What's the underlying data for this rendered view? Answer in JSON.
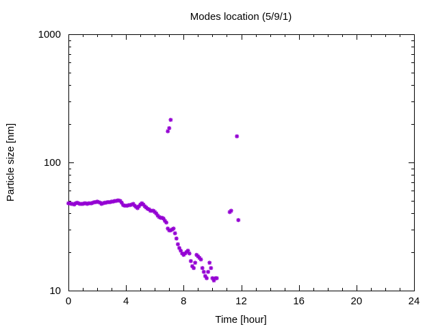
{
  "chart_data": {
    "type": "scatter",
    "title": "Modes location (5/9/1)",
    "xlabel": "Time [hour]",
    "ylabel": "Particle size [nm]",
    "xlim": [
      0,
      24
    ],
    "ylim": [
      10,
      1000
    ],
    "yscale": "log",
    "grid": false,
    "xticks": [
      0,
      4,
      8,
      12,
      16,
      20,
      24
    ],
    "xtick_labels": [
      "0",
      "4",
      "8",
      "12",
      "16",
      "20",
      "24"
    ],
    "yticks": [
      10,
      100,
      1000
    ],
    "ytick_labels": [
      "10",
      "100",
      "1000"
    ],
    "marker_color": "#9400d3",
    "series": [
      {
        "x": [
          0.0,
          0.1,
          0.2,
          0.3,
          0.4,
          0.5,
          0.6,
          0.7,
          0.8,
          0.9,
          1.0,
          1.1,
          1.2,
          1.3,
          1.4,
          1.5,
          1.6,
          1.7,
          1.8,
          1.9,
          2.0,
          2.1,
          2.2,
          2.3,
          2.4,
          2.5,
          2.6,
          2.7,
          2.8,
          2.9,
          3.0,
          3.1,
          3.2,
          3.3,
          3.4,
          3.5,
          3.6,
          3.7,
          3.8,
          3.9,
          4.0,
          4.1,
          4.2,
          4.3,
          4.4,
          4.5,
          4.6,
          4.7,
          4.8,
          4.9,
          5.0,
          5.1,
          5.2,
          5.3,
          5.4,
          5.5,
          5.6,
          5.7,
          5.8,
          5.9,
          6.0,
          6.1,
          6.2,
          6.3,
          6.4,
          6.5,
          6.6,
          6.7,
          6.8,
          6.9,
          7.0,
          7.1,
          7.2,
          7.3,
          7.4,
          7.5,
          7.6,
          7.7,
          7.8,
          7.9,
          8.0,
          8.1,
          8.2,
          8.3,
          8.4,
          8.5,
          8.6,
          8.7,
          8.8,
          8.9,
          9.0,
          9.1,
          9.2,
          9.3,
          9.4,
          9.5,
          9.6,
          9.7,
          9.8,
          9.9,
          10.0,
          10.1,
          10.2,
          10.3,
          11.2,
          11.3,
          6.9,
          7.0,
          7.1,
          11.7,
          11.8
        ],
        "y": [
          48,
          48,
          47.5,
          47.5,
          47,
          48,
          48.5,
          48,
          47.5,
          47.5,
          47.5,
          48,
          48,
          47.5,
          48,
          48,
          48,
          48.5,
          49,
          49,
          49.5,
          49,
          48.5,
          47.5,
          48,
          48.5,
          48.5,
          49,
          49,
          49,
          49.5,
          49.5,
          50,
          50,
          50.5,
          50.5,
          50,
          48.5,
          46.5,
          46,
          46,
          46,
          46.5,
          46.5,
          47,
          47.5,
          46,
          45,
          44,
          45.5,
          47,
          48,
          47,
          45.5,
          44.5,
          43.5,
          43,
          42,
          42,
          42,
          41,
          40,
          38.5,
          37.5,
          37,
          37,
          36.5,
          35,
          34,
          30.5,
          29.5,
          29.5,
          30,
          30.5,
          28,
          25.5,
          23,
          21.5,
          20.5,
          19.5,
          19,
          19.5,
          20,
          20.5,
          19.5,
          17,
          15.5,
          15,
          16.5,
          19,
          18.5,
          18,
          17.5,
          15,
          14,
          13,
          12.5,
          14,
          16.5,
          15,
          12.5,
          12,
          12.5,
          12.5,
          41,
          42,
          175,
          185,
          215,
          160,
          35.5
        ]
      }
    ]
  }
}
